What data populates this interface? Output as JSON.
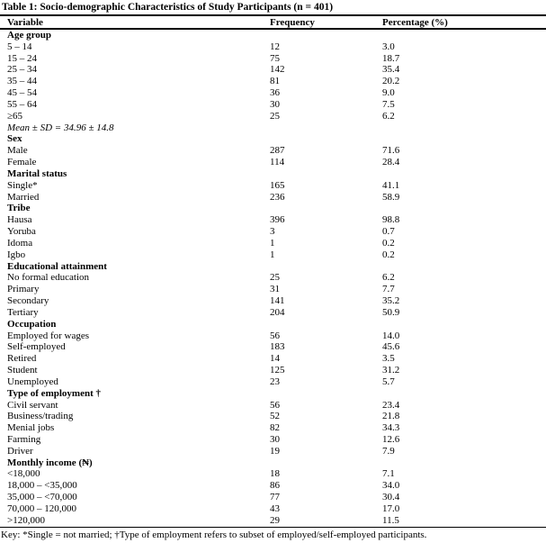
{
  "table": {
    "title": "Table 1: Socio-demographic Characteristics of Study Participants (n = 401)",
    "columns": [
      "Variable",
      "Frequency",
      "Percentage (%)"
    ],
    "rows": [
      {
        "type": "section",
        "label": "Age group",
        "freq": "",
        "pct": ""
      },
      {
        "type": "data",
        "label": "5 – 14",
        "freq": "12",
        "pct": "3.0"
      },
      {
        "type": "data",
        "label": "15 – 24",
        "freq": "75",
        "pct": "18.7"
      },
      {
        "type": "data",
        "label": "25 – 34",
        "freq": "142",
        "pct": "35.4"
      },
      {
        "type": "data",
        "label": "35 – 44",
        "freq": "81",
        "pct": "20.2"
      },
      {
        "type": "data",
        "label": "45 – 54",
        "freq": "36",
        "pct": "9.0"
      },
      {
        "type": "data",
        "label": "55 – 64",
        "freq": "30",
        "pct": "7.5"
      },
      {
        "type": "data",
        "label": "≥65",
        "freq": "25",
        "pct": "6.2"
      },
      {
        "type": "note",
        "label": "Mean ± SD = 34.96 ± 14.8",
        "freq": "",
        "pct": ""
      },
      {
        "type": "section",
        "label": "Sex",
        "freq": "",
        "pct": ""
      },
      {
        "type": "data",
        "label": "Male",
        "freq": "287",
        "pct": "71.6"
      },
      {
        "type": "data",
        "label": "Female",
        "freq": "114",
        "pct": "28.4"
      },
      {
        "type": "section",
        "label": "Marital status",
        "freq": "",
        "pct": ""
      },
      {
        "type": "data",
        "label": "Single*",
        "freq": "165",
        "pct": "41.1"
      },
      {
        "type": "data",
        "label": "Married",
        "freq": "236",
        "pct": "58.9"
      },
      {
        "type": "section",
        "label": "Tribe",
        "freq": "",
        "pct": ""
      },
      {
        "type": "data",
        "label": "Hausa",
        "freq": "396",
        "pct": "98.8"
      },
      {
        "type": "data",
        "label": "Yoruba",
        "freq": "3",
        "pct": "0.7"
      },
      {
        "type": "data",
        "label": "Idoma",
        "freq": "1",
        "pct": "0.2"
      },
      {
        "type": "data",
        "label": "Igbo",
        "freq": "1",
        "pct": "0.2"
      },
      {
        "type": "section",
        "label": "Educational attainment",
        "freq": "",
        "pct": ""
      },
      {
        "type": "data",
        "label": "No formal education",
        "freq": "25",
        "pct": "6.2"
      },
      {
        "type": "data",
        "label": "Primary",
        "freq": "31",
        "pct": "7.7"
      },
      {
        "type": "data",
        "label": "Secondary",
        "freq": "141",
        "pct": "35.2"
      },
      {
        "type": "data",
        "label": "Tertiary",
        "freq": "204",
        "pct": "50.9"
      },
      {
        "type": "section",
        "label": "Occupation",
        "freq": "",
        "pct": ""
      },
      {
        "type": "data",
        "label": "Employed for wages",
        "freq": "56",
        "pct": "14.0"
      },
      {
        "type": "data",
        "label": "Self-employed",
        "freq": "183",
        "pct": "45.6"
      },
      {
        "type": "data",
        "label": "Retired",
        "freq": "14",
        "pct": "3.5"
      },
      {
        "type": "data",
        "label": "Student",
        "freq": "125",
        "pct": "31.2"
      },
      {
        "type": "data",
        "label": "Unemployed",
        "freq": "23",
        "pct": "5.7"
      },
      {
        "type": "section",
        "label": "Type of employment †",
        "freq": "",
        "pct": ""
      },
      {
        "type": "data",
        "label": "Civil servant",
        "freq": "56",
        "pct": "23.4"
      },
      {
        "type": "data",
        "label": "Business/trading",
        "freq": "52",
        "pct": "21.8"
      },
      {
        "type": "data",
        "label": "Menial jobs",
        "freq": "82",
        "pct": "34.3"
      },
      {
        "type": "data",
        "label": "Farming",
        "freq": "30",
        "pct": "12.6"
      },
      {
        "type": "data",
        "label": "Driver",
        "freq": "19",
        "pct": "7.9"
      },
      {
        "type": "section",
        "label": "Monthly income (₦)",
        "freq": "",
        "pct": ""
      },
      {
        "type": "data",
        "label": "<18,000",
        "freq": "18",
        "pct": "7.1"
      },
      {
        "type": "data",
        "label": "18,000 – <35,000",
        "freq": "86",
        "pct": "34.0"
      },
      {
        "type": "data",
        "label": "35,000 – <70,000",
        "freq": "77",
        "pct": "30.4"
      },
      {
        "type": "data",
        "label": "70,000 – 120,000",
        "freq": "43",
        "pct": "17.0"
      },
      {
        "type": "data",
        "label": ">120,000",
        "freq": "29",
        "pct": "11.5"
      }
    ],
    "key": "Key: *Single = not married; †Type of employment refers to subset of employed/self-employed participants."
  }
}
